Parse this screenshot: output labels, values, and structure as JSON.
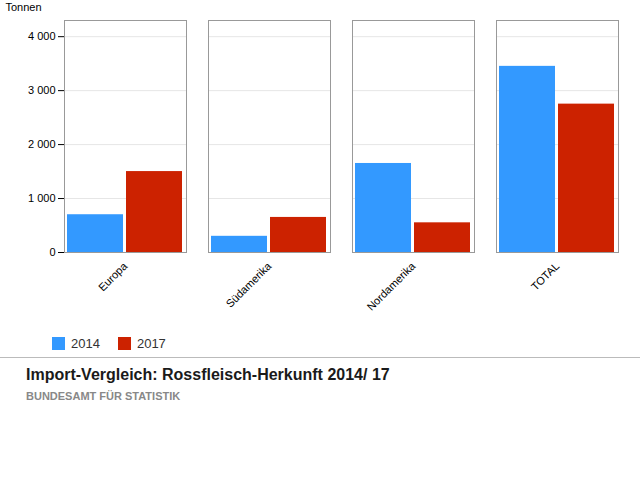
{
  "chart_data": {
    "type": "bar",
    "title": "Import-Vergleich: Rossfleisch-Herkunft 2014/ 17",
    "subtitle": "BUNDESAMT FÜR STATISTIK",
    "ylabel": "Tonnen",
    "categories": [
      "Europa",
      "Südamerika",
      "Nordamerika",
      "TOTAL"
    ],
    "series": [
      {
        "name": "2014",
        "color": "#3399FF",
        "values": [
          700,
          300,
          1650,
          3450
        ]
      },
      {
        "name": "2017",
        "color": "#CC2200",
        "values": [
          1500,
          650,
          550,
          2750
        ]
      }
    ],
    "ylim": [
      0,
      4300
    ],
    "yticks": [
      0,
      {
        "value": 1000,
        "label": "1 000"
      },
      {
        "value": 2000,
        "label": "2 000"
      },
      {
        "value": 3000,
        "label": "3 000"
      },
      {
        "value": 4000,
        "label": "4 000"
      }
    ],
    "grid": true,
    "legend": "bottom"
  }
}
